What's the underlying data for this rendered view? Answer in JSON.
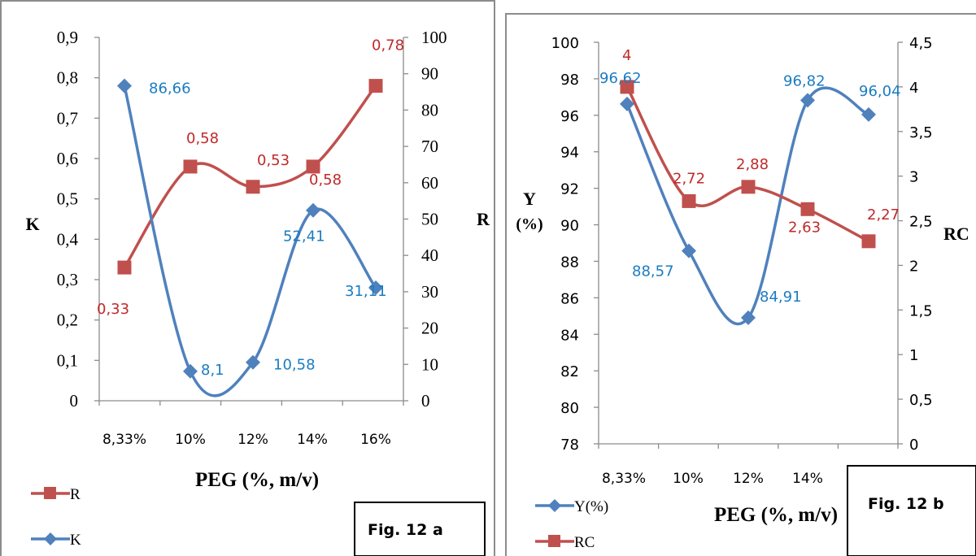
{
  "chart_data": [
    {
      "type": "line",
      "figure_label": "Fig. 12 a",
      "categories": [
        "8,33%",
        "10%",
        "12%",
        "14%",
        "16%"
      ],
      "xlabel": "PEG (%, m/v)",
      "left_axis": {
        "label": "K",
        "min": 0,
        "max": 0.9,
        "step": 0.1,
        "ticks": [
          "0",
          "0,1",
          "0,2",
          "0,3",
          "0,4",
          "0,5",
          "0,6",
          "0,7",
          "0,8",
          "0,9"
        ]
      },
      "right_axis": {
        "label": "R",
        "min": 0,
        "max": 100,
        "step": 10,
        "ticks": [
          "0",
          "10",
          "20",
          "30",
          "40",
          "50",
          "60",
          "70",
          "80",
          "90",
          "100"
        ]
      },
      "series": [
        {
          "name": "R",
          "axis": "left",
          "marker": "square",
          "color": "#c0504d",
          "values": [
            0.33,
            0.58,
            0.53,
            0.58,
            0.78
          ],
          "labels": [
            "0,33",
            "0,58",
            "0,53",
            "0,58",
            "0,78"
          ]
        },
        {
          "name": "K",
          "axis": "right",
          "marker": "diamond",
          "color": "#4f81bd",
          "values": [
            86.66,
            8.1,
            10.58,
            52.41,
            31.11
          ],
          "labels": [
            "86,66",
            "8,1",
            "10,58",
            "52,41",
            "31,11"
          ]
        }
      ],
      "legend": "bottom-left"
    },
    {
      "type": "line",
      "figure_label": "Fig. 12 b",
      "categories": [
        "8,33%",
        "10%",
        "12%",
        "14%",
        "16%"
      ],
      "xlabel": "PEG (%, m/v)",
      "left_axis": {
        "label_line1": "Y",
        "label_line2": "(%)",
        "min": 78,
        "max": 100,
        "step": 2,
        "ticks": [
          "78",
          "80",
          "82",
          "84",
          "86",
          "88",
          "90",
          "92",
          "94",
          "96",
          "98",
          "100"
        ]
      },
      "right_axis": {
        "label": "RC",
        "min": 0,
        "max": 4.5,
        "step": 0.5,
        "ticks": [
          "0",
          "0,5",
          "1",
          "1,5",
          "2",
          "2,5",
          "3",
          "3,5",
          "4",
          "4,5"
        ]
      },
      "series": [
        {
          "name": "Y(%)",
          "axis": "left",
          "marker": "diamond",
          "color": "#4f81bd",
          "values": [
            96.62,
            88.57,
            84.91,
            96.82,
            96.04
          ],
          "labels": [
            "96,62",
            "88,57",
            "84,91",
            "96,82",
            "96,04"
          ]
        },
        {
          "name": "RC",
          "axis": "right",
          "marker": "square",
          "color": "#c0504d",
          "values": [
            4,
            2.72,
            2.88,
            2.63,
            2.27
          ],
          "labels": [
            "4",
            "2,72",
            "2,88",
            "2,63",
            "2,27"
          ]
        }
      ],
      "legend": "bottom-left"
    }
  ]
}
